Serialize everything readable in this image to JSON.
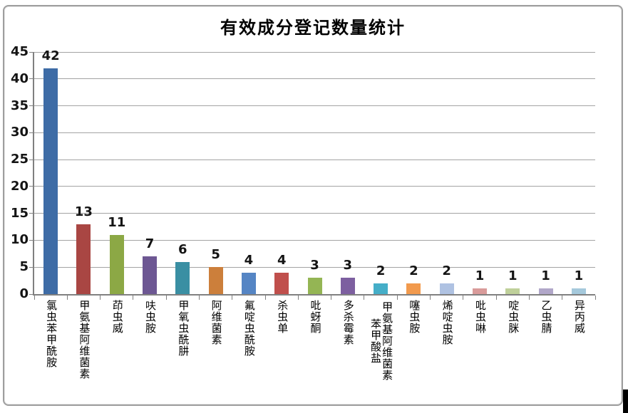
{
  "chart_data": {
    "type": "bar",
    "title": "有效成分登记数量统计",
    "categories": [
      "氯虫苯甲酰胺",
      "甲氨基阿维菌素",
      "茚虫威",
      "呋虫胺",
      "甲氧虫酰肼",
      "阿维菌素",
      "氟啶虫酰胺",
      "杀虫单",
      "吡蚜酮",
      "多杀霉素",
      "甲氨基阿维菌素苯甲酸盐",
      "噻虫胺",
      "烯啶虫胺",
      "吡虫啉",
      "啶虫脒",
      "乙虫腈",
      "异丙威"
    ],
    "values": [
      42,
      13,
      11,
      7,
      6,
      5,
      4,
      4,
      3,
      3,
      2,
      2,
      2,
      1,
      1,
      1,
      1
    ],
    "bar_colors": [
      "#3E6CA6",
      "#A94643",
      "#8CA845",
      "#6D5793",
      "#3A8FA3",
      "#CC7F3B",
      "#5585C4",
      "#C04F4C",
      "#94B554",
      "#7D5FA0",
      "#45AEC8",
      "#F29A4D",
      "#AFC2E2",
      "#D99B9A",
      "#BFD09A",
      "#B1A7C9",
      "#A5C9DC"
    ],
    "xlabel": "",
    "ylabel": "",
    "ylim": [
      0,
      45
    ],
    "yticks": [
      0,
      5,
      10,
      15,
      20,
      25,
      30,
      35,
      40,
      45
    ],
    "grid": "horizontal",
    "legend": "none",
    "data_label_position": "outside-end"
  },
  "style_colors": {
    "chart_border": "#9E9E9E",
    "gridline": "#A3A3A3",
    "axis": "#808080",
    "text": "#141414",
    "background": "#FFFFFF",
    "caret": "#000000"
  }
}
